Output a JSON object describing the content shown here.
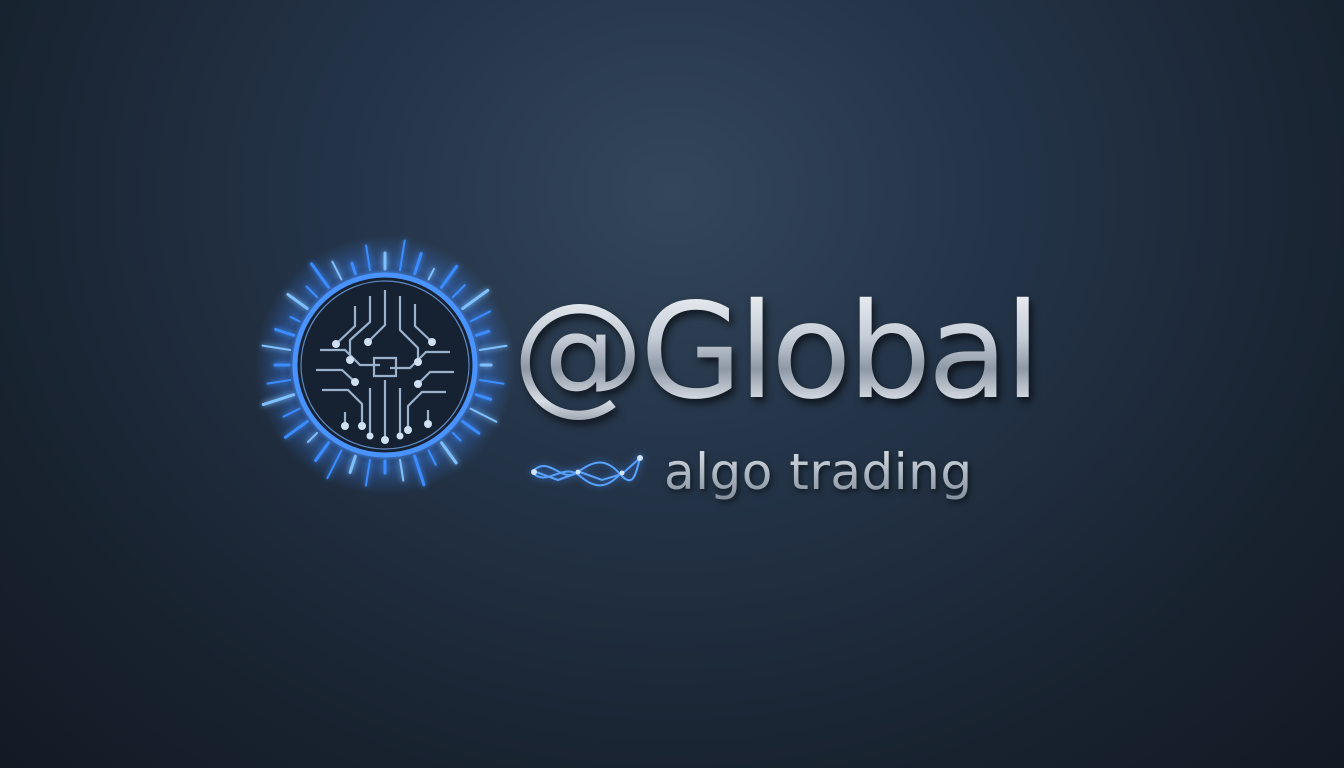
{
  "logo": {
    "brand_name": "@Global",
    "tagline": "algo trading",
    "emblem_icon": "circuit-sun-icon",
    "wave_icon": "network-wave-icon"
  },
  "colors": {
    "background": "#1b2736",
    "accent_glow": "#3b8cff",
    "metal_text": "#c8d0d9"
  }
}
